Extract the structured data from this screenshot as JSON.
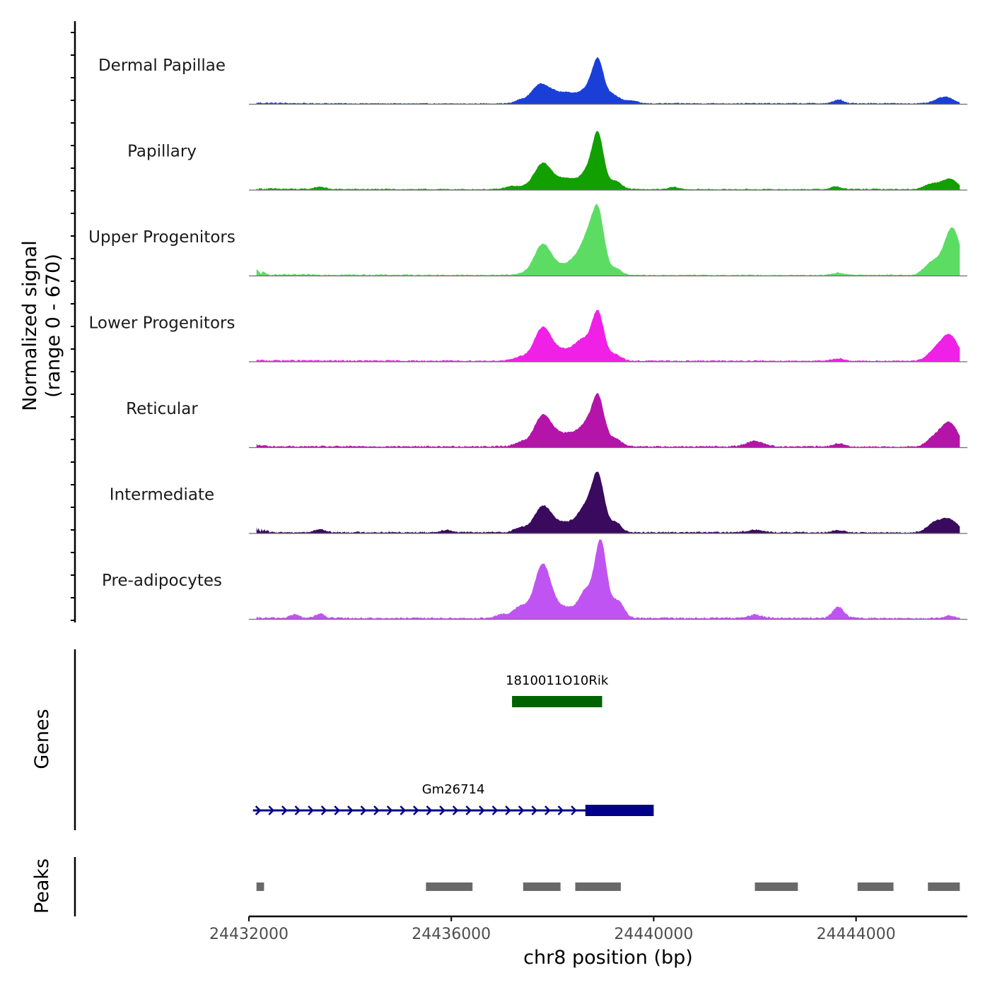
{
  "chart_data": {
    "type": "area",
    "title": "",
    "coverage": {
      "ylabel_line1": "Normalized signal",
      "ylabel_line2": "(range 0 - 670)",
      "ylim": [
        0,
        670
      ],
      "xlim": [
        24432000,
        24446200
      ],
      "region_start": 24432150,
      "region_end": 24446050,
      "peak_position_units": "bp",
      "tracks": [
        {
          "name": "Dermal Papillae",
          "color": "#1a3fd9",
          "background": [
            [
              24432150,
              14
            ],
            [
              24433100,
              9
            ],
            [
              24436300,
              6
            ],
            [
              24436900,
              8
            ],
            [
              24442500,
              9
            ],
            [
              24444300,
              10
            ],
            [
              24446050,
              6
            ]
          ],
          "peaks": [
            {
              "pos": 24437350,
              "height": 22,
              "width": 90
            },
            {
              "pos": 24437800,
              "height": 95,
              "width": 170
            },
            {
              "pos": 24437650,
              "height": 38,
              "width": 130
            },
            {
              "pos": 24438300,
              "height": 90,
              "width": 420
            },
            {
              "pos": 24438700,
              "height": 60,
              "width": 110
            },
            {
              "pos": 24438900,
              "height": 320,
              "width": 110
            },
            {
              "pos": 24439200,
              "height": 60,
              "width": 130
            },
            {
              "pos": 24439550,
              "height": 22,
              "width": 120
            },
            {
              "pos": 24443650,
              "height": 30,
              "width": 90
            },
            {
              "pos": 24445750,
              "height": 55,
              "width": 170
            }
          ]
        },
        {
          "name": "Papillary",
          "color": "#12a000",
          "background": [
            [
              24432150,
              14
            ],
            [
              24433200,
              10
            ],
            [
              24436300,
              8
            ],
            [
              24442500,
              8
            ],
            [
              24444300,
              10
            ],
            [
              24446050,
              6
            ]
          ],
          "peaks": [
            {
              "pos": 24433400,
              "height": 20,
              "width": 100
            },
            {
              "pos": 24437200,
              "height": 20,
              "width": 130
            },
            {
              "pos": 24437800,
              "height": 160,
              "width": 160
            },
            {
              "pos": 24438300,
              "height": 90,
              "width": 480
            },
            {
              "pos": 24438700,
              "height": 80,
              "width": 110
            },
            {
              "pos": 24438900,
              "height": 410,
              "width": 110
            },
            {
              "pos": 24439250,
              "height": 55,
              "width": 110
            },
            {
              "pos": 24440400,
              "height": 18,
              "width": 100
            },
            {
              "pos": 24443600,
              "height": 22,
              "width": 100
            },
            {
              "pos": 24445500,
              "height": 45,
              "width": 150
            },
            {
              "pos": 24445850,
              "height": 85,
              "width": 150
            }
          ]
        },
        {
          "name": "Upper Progenitors",
          "color": "#5ddc64",
          "background": [
            [
              24432150,
              45
            ],
            [
              24432400,
              12
            ],
            [
              24433500,
              12
            ],
            [
              24436300,
              9
            ],
            [
              24442500,
              8
            ],
            [
              24444300,
              10
            ],
            [
              24446050,
              8
            ]
          ],
          "peaks": [
            {
              "pos": 24437800,
              "height": 200,
              "width": 160
            },
            {
              "pos": 24438200,
              "height": 80,
              "width": 420
            },
            {
              "pos": 24438550,
              "height": 110,
              "width": 150
            },
            {
              "pos": 24438700,
              "height": 160,
              "width": 110
            },
            {
              "pos": 24438900,
              "height": 500,
              "width": 120
            },
            {
              "pos": 24439250,
              "height": 50,
              "width": 110
            },
            {
              "pos": 24443650,
              "height": 18,
              "width": 120
            },
            {
              "pos": 24445500,
              "height": 100,
              "width": 150
            },
            {
              "pos": 24445900,
              "height": 380,
              "width": 160
            }
          ]
        },
        {
          "name": "Lower Progenitors",
          "color": "#f020e6",
          "background": [
            [
              24432150,
              14
            ],
            [
              24434000,
              11
            ],
            [
              24436300,
              10
            ],
            [
              24442500,
              10
            ],
            [
              24444300,
              9
            ],
            [
              24446050,
              8
            ]
          ],
          "peaks": [
            {
              "pos": 24437350,
              "height": 22,
              "width": 110
            },
            {
              "pos": 24437800,
              "height": 215,
              "width": 160
            },
            {
              "pos": 24438200,
              "height": 90,
              "width": 420
            },
            {
              "pos": 24438600,
              "height": 110,
              "width": 150
            },
            {
              "pos": 24438900,
              "height": 370,
              "width": 120
            },
            {
              "pos": 24439250,
              "height": 45,
              "width": 110
            },
            {
              "pos": 24443650,
              "height": 20,
              "width": 110
            },
            {
              "pos": 24445550,
              "height": 70,
              "width": 150
            },
            {
              "pos": 24445850,
              "height": 205,
              "width": 170
            }
          ]
        },
        {
          "name": "Reticular",
          "color": "#b414a8",
          "background": [
            [
              24432150,
              25
            ],
            [
              24432450,
              12
            ],
            [
              24434500,
              12
            ],
            [
              24436300,
              12
            ],
            [
              24442500,
              12
            ],
            [
              24444300,
              10
            ],
            [
              24446050,
              10
            ]
          ],
          "peaks": [
            {
              "pos": 24437350,
              "height": 25,
              "width": 110
            },
            {
              "pos": 24437800,
              "height": 200,
              "width": 160
            },
            {
              "pos": 24438300,
              "height": 110,
              "width": 440
            },
            {
              "pos": 24438650,
              "height": 90,
              "width": 120
            },
            {
              "pos": 24438900,
              "height": 370,
              "width": 120
            },
            {
              "pos": 24439250,
              "height": 55,
              "width": 110
            },
            {
              "pos": 24442000,
              "height": 45,
              "width": 170
            },
            {
              "pos": 24443650,
              "height": 25,
              "width": 110
            },
            {
              "pos": 24445550,
              "height": 70,
              "width": 150
            },
            {
              "pos": 24445850,
              "height": 190,
              "width": 160
            }
          ]
        },
        {
          "name": "Intermediate",
          "color": "#3a0a5e",
          "background": [
            [
              24432150,
              40
            ],
            [
              24432450,
              12
            ],
            [
              24434000,
              12
            ],
            [
              24436300,
              12
            ],
            [
              24442500,
              12
            ],
            [
              24444300,
              10
            ],
            [
              24446050,
              10
            ]
          ],
          "peaks": [
            {
              "pos": 24433400,
              "height": 25,
              "width": 100
            },
            {
              "pos": 24435900,
              "height": 20,
              "width": 110
            },
            {
              "pos": 24437350,
              "height": 30,
              "width": 110
            },
            {
              "pos": 24437800,
              "height": 170,
              "width": 160
            },
            {
              "pos": 24438300,
              "height": 85,
              "width": 440
            },
            {
              "pos": 24438650,
              "height": 140,
              "width": 130
            },
            {
              "pos": 24438900,
              "height": 430,
              "width": 120
            },
            {
              "pos": 24439250,
              "height": 70,
              "width": 110
            },
            {
              "pos": 24442000,
              "height": 20,
              "width": 150
            },
            {
              "pos": 24443650,
              "height": 18,
              "width": 100
            },
            {
              "pos": 24445550,
              "height": 70,
              "width": 150
            },
            {
              "pos": 24445850,
              "height": 100,
              "width": 170
            }
          ]
        },
        {
          "name": "Pre-adipocytes",
          "color": "#c054f2",
          "background": [
            [
              24432150,
              14
            ],
            [
              24433000,
              14
            ],
            [
              24434500,
              12
            ],
            [
              24436300,
              12
            ],
            [
              24442500,
              14
            ],
            [
              24444300,
              12
            ],
            [
              24446050,
              10
            ]
          ],
          "peaks": [
            {
              "pos": 24432900,
              "height": 28,
              "width": 90
            },
            {
              "pos": 24433400,
              "height": 35,
              "width": 90
            },
            {
              "pos": 24437000,
              "height": 30,
              "width": 110
            },
            {
              "pos": 24437350,
              "height": 85,
              "width": 130
            },
            {
              "pos": 24437800,
              "height": 390,
              "width": 160
            },
            {
              "pos": 24438300,
              "height": 90,
              "width": 440
            },
            {
              "pos": 24438650,
              "height": 150,
              "width": 110
            },
            {
              "pos": 24438950,
              "height": 600,
              "width": 120
            },
            {
              "pos": 24439300,
              "height": 130,
              "width": 110
            },
            {
              "pos": 24442000,
              "height": 25,
              "width": 140
            },
            {
              "pos": 24443650,
              "height": 90,
              "width": 110
            },
            {
              "pos": 24445850,
              "height": 22,
              "width": 110
            }
          ]
        }
      ]
    },
    "genes": {
      "ylabel": "Genes",
      "items": [
        {
          "name": "1810011O10Rik",
          "start": 24437200,
          "end": 24438980,
          "cds_start": 24437200,
          "cds_end": 24438980,
          "strand": "",
          "color": "#006400",
          "row": 1
        },
        {
          "name": "Gm26714",
          "start": 24432080,
          "end": 24440000,
          "cds_start": 24438650,
          "cds_end": 24440000,
          "strand": "+",
          "color": "#00008b",
          "row": 2
        }
      ]
    },
    "peaks": {
      "ylabel": "Peaks",
      "color": "#696969",
      "regions": [
        [
          24432150,
          24432300
        ],
        [
          24435500,
          24436420
        ],
        [
          24437420,
          24438160
        ],
        [
          24438450,
          24439350
        ],
        [
          24442000,
          24442850
        ],
        [
          24444030,
          24444740
        ],
        [
          24445420,
          24446050
        ]
      ]
    },
    "xaxis": {
      "label": "chr8 position (bp)",
      "ticks": [
        24432000,
        24436000,
        24440000,
        24444000
      ],
      "tick_labels": [
        "24432000",
        "24436000",
        "24440000",
        "24444000"
      ]
    }
  }
}
